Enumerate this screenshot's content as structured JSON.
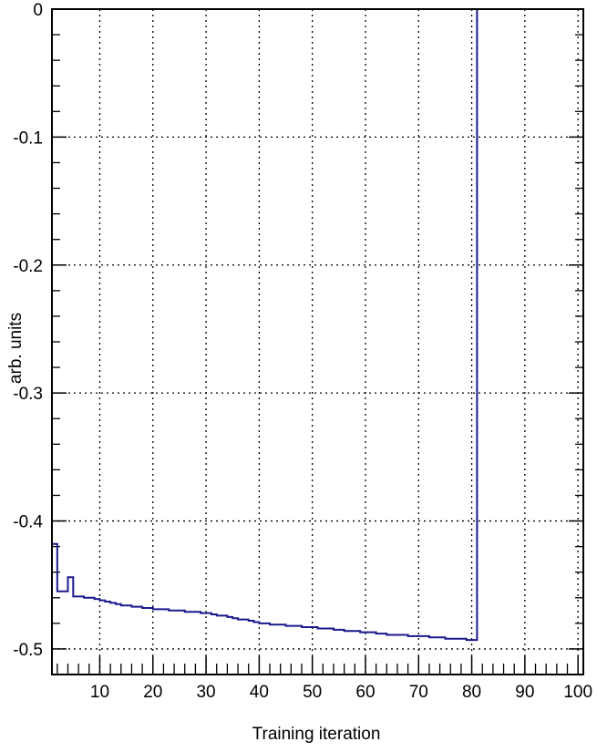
{
  "chart_data": {
    "type": "line",
    "title": "",
    "xlabel": "Training iteration",
    "ylabel": "arb. units",
    "xlim": [
      1,
      101
    ],
    "ylim": [
      -0.52,
      0
    ],
    "xticks": [
      10,
      20,
      30,
      40,
      50,
      60,
      70,
      80,
      90,
      100
    ],
    "xtick_labels": [
      "10",
      "20",
      "30",
      "40",
      "50",
      "60",
      "70",
      "80",
      "90",
      "100"
    ],
    "yticks": [
      0,
      -0.1,
      -0.2,
      -0.3,
      -0.4,
      -0.5
    ],
    "ytick_labels": [
      "0",
      "-0.1",
      "-0.2",
      "-0.3",
      "-0.4",
      "-0.5"
    ],
    "grid": true,
    "line_style": "step",
    "line_color": "#1a1a8c",
    "series": [
      {
        "x": [
          1,
          2,
          3,
          4,
          5,
          6,
          7,
          8,
          9,
          10,
          11,
          12,
          13,
          14,
          15,
          16,
          17,
          18,
          19,
          20,
          21,
          22,
          23,
          24,
          25,
          26,
          27,
          28,
          29,
          30,
          31,
          32,
          33,
          34,
          35,
          36,
          37,
          38,
          39,
          40,
          41,
          42,
          43,
          44,
          45,
          46,
          47,
          48,
          49,
          50,
          51,
          52,
          53,
          54,
          55,
          56,
          57,
          58,
          59,
          60,
          61,
          62,
          63,
          64,
          65,
          66,
          67,
          68,
          69,
          70,
          71,
          72,
          73,
          74,
          75,
          76,
          77,
          78,
          79,
          80,
          81,
          82,
          83,
          84,
          85,
          86,
          87,
          88,
          89,
          90,
          91,
          92,
          93,
          94,
          95,
          96,
          97,
          98,
          99,
          100,
          101
        ],
        "y": [
          -0.418,
          -0.455,
          -0.455,
          -0.444,
          -0.459,
          -0.459,
          -0.46,
          -0.46,
          -0.461,
          -0.462,
          -0.463,
          -0.464,
          -0.465,
          -0.466,
          -0.466,
          -0.467,
          -0.467,
          -0.468,
          -0.468,
          -0.469,
          -0.469,
          -0.469,
          -0.47,
          -0.47,
          -0.47,
          -0.471,
          -0.471,
          -0.471,
          -0.472,
          -0.472,
          -0.473,
          -0.474,
          -0.474,
          -0.475,
          -0.476,
          -0.477,
          -0.477,
          -0.478,
          -0.479,
          -0.48,
          -0.48,
          -0.481,
          -0.481,
          -0.481,
          -0.482,
          -0.482,
          -0.482,
          -0.483,
          -0.483,
          -0.483,
          -0.484,
          -0.484,
          -0.484,
          -0.485,
          -0.485,
          -0.486,
          -0.486,
          -0.486,
          -0.487,
          -0.487,
          -0.487,
          -0.488,
          -0.488,
          -0.489,
          -0.489,
          -0.489,
          -0.489,
          -0.49,
          -0.49,
          -0.49,
          -0.49,
          -0.491,
          -0.491,
          -0.491,
          -0.492,
          -0.492,
          -0.492,
          -0.492,
          -0.493,
          -0.493,
          0,
          0,
          0,
          0,
          0,
          0,
          0,
          0,
          0,
          0,
          0,
          0,
          0,
          0,
          0,
          0,
          0,
          0,
          0,
          0,
          -0.493
        ]
      }
    ]
  }
}
